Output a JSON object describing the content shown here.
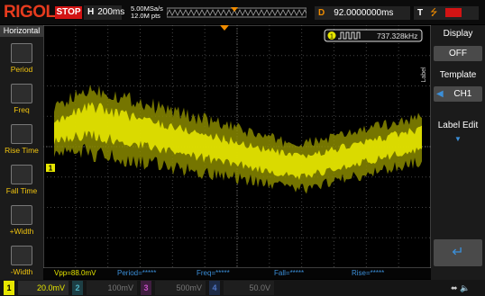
{
  "top_bar": {
    "brand": "RIGOL",
    "status": "STOP",
    "timebase_label": "H",
    "timebase": "200ms",
    "sample_rate": "5.00MSa/s",
    "memory_depth": "12.0M pts",
    "delay_label": "D",
    "delay": "92.0000000ms",
    "trigger_label": "T"
  },
  "left_menu": {
    "title": "Horizontal",
    "items": [
      "Period",
      "Freq",
      "Rise Time",
      "Fall Time",
      "+Width",
      "-Width"
    ]
  },
  "right_menu": {
    "side_label": "Label",
    "items": [
      {
        "label": "Display",
        "value": "OFF"
      },
      {
        "label": "Template",
        "value": "CH1"
      },
      {
        "label": "Label Edit"
      }
    ]
  },
  "counter": {
    "channel": "1",
    "value": "737.328kHz"
  },
  "measurements": [
    "Vpp=88.0mV",
    "Period=*****",
    "Freq=*****",
    "Fall=*****",
    "Rise=*****"
  ],
  "channels": [
    {
      "id": "1",
      "scale": "20.0mV"
    },
    {
      "id": "2",
      "scale": "100mV"
    },
    {
      "id": "3",
      "scale": "500mV"
    },
    {
      "id": "4",
      "scale": "50.0V"
    }
  ]
}
